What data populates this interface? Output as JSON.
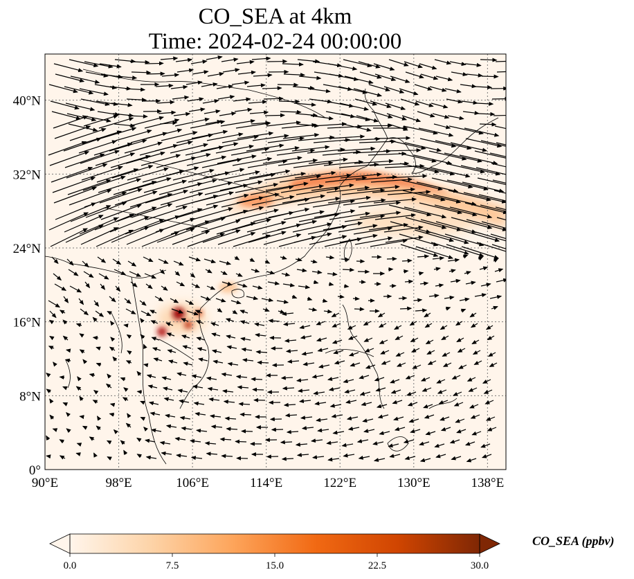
{
  "title": {
    "line1": "CO_SEA at 4km",
    "line2": "Time: 2024-02-24 00:00:00"
  },
  "map": {
    "lon_range": [
      90,
      140
    ],
    "lat_range": [
      0,
      45
    ],
    "lon_ticks": [
      "90°E",
      "98°E",
      "106°E",
      "114°E",
      "122°E",
      "130°E",
      "138°E"
    ],
    "lat_ticks": [
      "0°",
      "8°N",
      "16°N",
      "24°N",
      "32°N",
      "40°N"
    ],
    "gridlines": true,
    "background_color": "#fff5eb"
  },
  "overlay": {
    "type": "wind-vectors",
    "arrow_color": "#000000"
  },
  "colorbar": {
    "label": "CO_SEA (ppbv)",
    "ticks": [
      "0.0",
      "7.5",
      "15.0",
      "22.5",
      "30.0"
    ],
    "min": 0,
    "max": 30,
    "extend": "both",
    "colormap": [
      "#fff5eb",
      "#fdd3a7",
      "#fda45a",
      "#f16913",
      "#d04501",
      "#7f2704"
    ]
  },
  "plumes": [
    {
      "name": "northern-transport-band",
      "color": "#f88a4f"
    },
    {
      "name": "indochina-hotspots",
      "color": "#a01010"
    }
  ]
}
